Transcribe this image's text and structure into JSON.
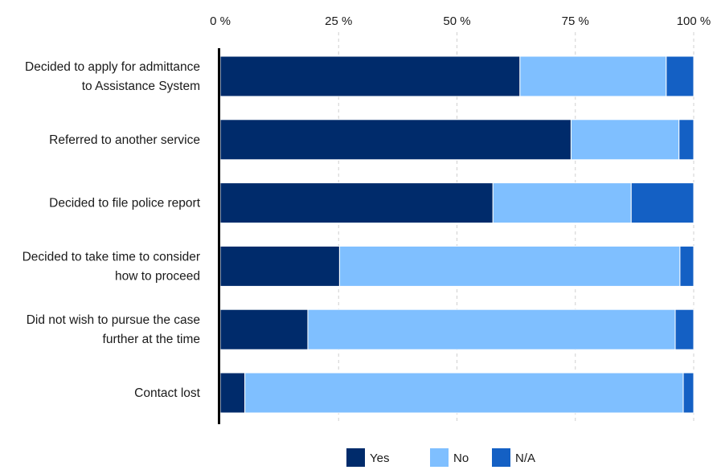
{
  "chart_data": {
    "type": "bar",
    "orientation": "horizontal",
    "stacked": true,
    "categories": [
      [
        "Decided to apply for admittance",
        "to Assistance System"
      ],
      [
        "Referred to another service"
      ],
      [
        "Decided to file police report"
      ],
      [
        "Decided to take time to consider",
        "how to proceed"
      ],
      [
        "Did not wish to pursue the case",
        "further at the time"
      ],
      [
        "Contact lost"
      ]
    ],
    "series": [
      {
        "name": "Yes",
        "color": "#002b6b",
        "values": [
          63.3,
          74.1,
          57.6,
          25.2,
          18.5,
          5.2
        ]
      },
      {
        "name": "No",
        "color": "#7fbfff",
        "values": [
          30.9,
          22.8,
          29.2,
          71.9,
          77.6,
          92.6
        ]
      },
      {
        "name": "N/A",
        "color": "#1460c4",
        "values": [
          5.8,
          3.1,
          13.2,
          2.9,
          3.9,
          2.2
        ]
      }
    ],
    "xlim": [
      0,
      100
    ],
    "x_ticks": [
      "0 %",
      "25 %",
      "50 %",
      "75 %",
      "100 %"
    ],
    "x_tick_values": [
      0,
      25,
      50,
      75,
      100
    ],
    "x_axis_position": "top",
    "grid": true,
    "legend_position": "bottom-center",
    "title": "",
    "xlabel": "",
    "ylabel": ""
  }
}
